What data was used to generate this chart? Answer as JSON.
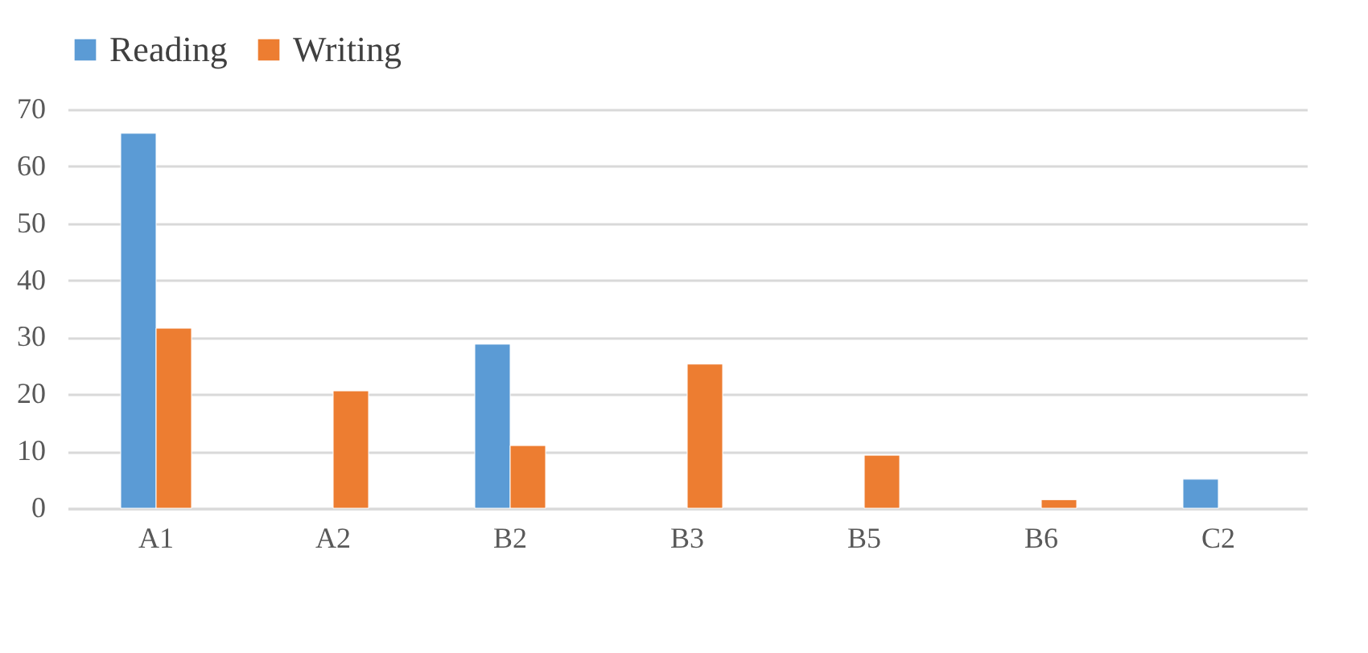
{
  "chart_data": {
    "type": "bar",
    "categories": [
      "A1",
      "A2",
      "B2",
      "B3",
      "B5",
      "B6",
      "C2"
    ],
    "series": [
      {
        "name": "Reading",
        "color": "#5b9bd5",
        "values": [
          65.8,
          null,
          28.8,
          null,
          null,
          null,
          5.1
        ]
      },
      {
        "name": "Writing",
        "color": "#ed7d31",
        "values": [
          31.6,
          20.6,
          11,
          25.3,
          9.3,
          1.5,
          null
        ]
      }
    ],
    "ylim": [
      0,
      70
    ],
    "yticks": [
      0,
      10,
      20,
      30,
      40,
      50,
      60,
      70
    ],
    "grid": "y",
    "legend": "top"
  }
}
